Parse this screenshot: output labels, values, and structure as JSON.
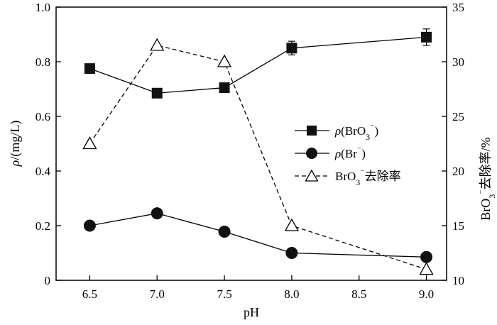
{
  "chart_data": {
    "type": "line",
    "x": [
      6.5,
      7.0,
      7.5,
      8.0,
      9.0
    ],
    "xlabel": "pH",
    "xticks": [
      "6.5",
      "7.0",
      "7.5",
      "8.0",
      "8.5",
      "9.0"
    ],
    "xlim": [
      6.25,
      9.15
    ],
    "y_left": {
      "label_italic": "ρ",
      "label_rest": "/(mg/L)",
      "ylim": [
        0,
        1.0
      ],
      "ticks": [
        "0",
        "0.2",
        "0.4",
        "0.6",
        "0.8",
        "1.0"
      ]
    },
    "y_right": {
      "label": "BrO3⁻去除率/%",
      "label_main": "BrO",
      "label_sub": "3",
      "label_sup": "⁻",
      "label_tail": "去除率/%",
      "ylim": [
        10,
        35
      ],
      "ticks": [
        "10",
        "15",
        "20",
        "25",
        "30",
        "35"
      ]
    },
    "series": [
      {
        "name": "ρ(BrO3⁻)",
        "legend_main": "ρ",
        "legend_paren": "(BrO",
        "legend_sub": "3",
        "legend_sup": "⁻",
        "legend_close": ")",
        "axis": "left",
        "marker": "square",
        "line": "solid",
        "values": [
          0.775,
          0.685,
          0.705,
          0.85,
          0.89
        ],
        "errors": [
          0.01,
          0.015,
          0.012,
          0.025,
          0.03
        ]
      },
      {
        "name": "ρ(Br⁻)",
        "legend_main": "ρ",
        "legend_paren": "(Br",
        "legend_sup": "⁻",
        "legend_close": ")",
        "axis": "left",
        "marker": "circle",
        "line": "solid",
        "values": [
          0.2,
          0.245,
          0.178,
          0.1,
          0.085
        ]
      },
      {
        "name": "BrO3⁻去除率",
        "legend_main": "BrO",
        "legend_sub": "3",
        "legend_sup": "⁻",
        "legend_tail": "去除率",
        "axis": "right",
        "marker": "triangle-open",
        "line": "dashed",
        "values": [
          22.5,
          31.5,
          30.0,
          15.0,
          11.0
        ]
      }
    ],
    "legend_position": "center-right",
    "grid": false
  }
}
